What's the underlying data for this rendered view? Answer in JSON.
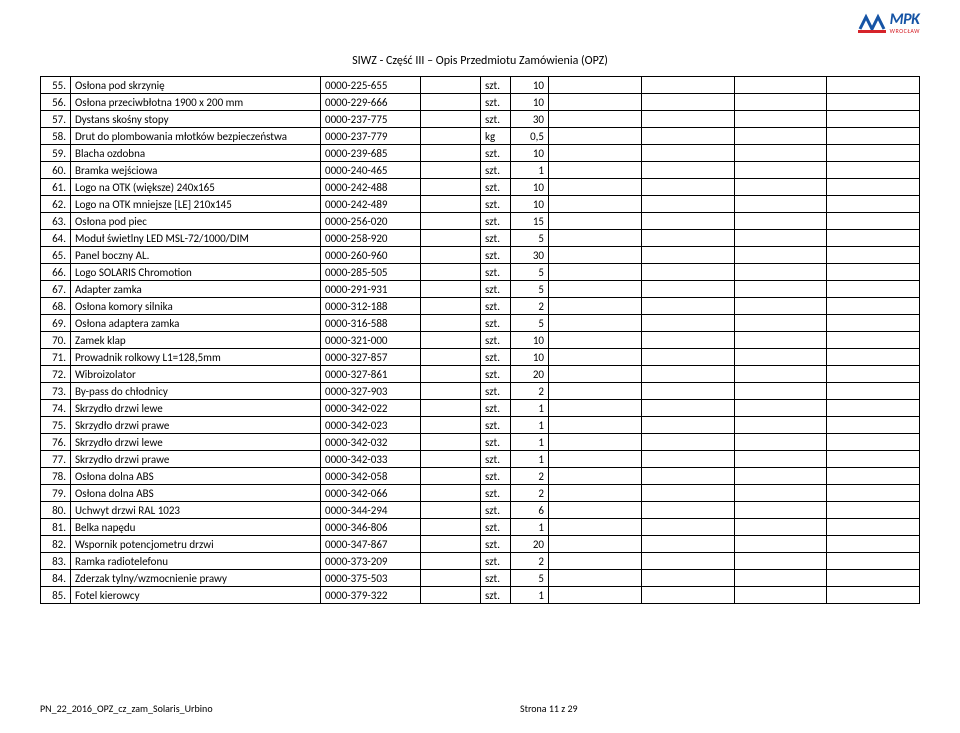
{
  "header": {
    "title": "SIWZ - Część III – Opis Przedmiotu Zamówienia (OPZ)",
    "logo_main": "MPK",
    "logo_sub": "WROCŁAW",
    "logo_colors": {
      "blue": "#1654a5",
      "red": "#d6232a"
    }
  },
  "footer": {
    "left": "PN_22_2016_OPZ_cz_zam_Solaris_Urbino",
    "center": "Strona 11 z 29"
  },
  "rows": [
    {
      "n": "55.",
      "name": "Osłona pod skrzynię",
      "code": "0000-225-655",
      "unit": "szt.",
      "qty": "10"
    },
    {
      "n": "56.",
      "name": "Osłona przeciwbłotna 1900 x 200 mm",
      "code": "0000-229-666",
      "unit": "szt.",
      "qty": "10"
    },
    {
      "n": "57.",
      "name": "Dystans skośny stopy",
      "code": "0000-237-775",
      "unit": "szt.",
      "qty": "30"
    },
    {
      "n": "58.",
      "name": "Drut do plombowania młotków bezpieczeństwa",
      "code": "0000-237-779",
      "unit": "kg",
      "qty": "0,5"
    },
    {
      "n": "59.",
      "name": "Blacha ozdobna",
      "code": "0000-239-685",
      "unit": "szt.",
      "qty": "10"
    },
    {
      "n": "60.",
      "name": "Bramka wejściowa",
      "code": "0000-240-465",
      "unit": "szt.",
      "qty": "1"
    },
    {
      "n": "61.",
      "name": "Logo na OTK (większe) 240x165",
      "code": "0000-242-488",
      "unit": "szt.",
      "qty": "10"
    },
    {
      "n": "62.",
      "name": "Logo na OTK mniejsze [LE] 210x145",
      "code": "0000-242-489",
      "unit": "szt.",
      "qty": "10"
    },
    {
      "n": "63.",
      "name": "Osłona pod piec",
      "code": "0000-256-020",
      "unit": "szt.",
      "qty": "15"
    },
    {
      "n": "64.",
      "name": "Moduł świetlny LED MSL-72/1000/DIM",
      "code": "0000-258-920",
      "unit": "szt.",
      "qty": "5"
    },
    {
      "n": "65.",
      "name": "Panel boczny AL.",
      "code": "0000-260-960",
      "unit": "szt.",
      "qty": "30"
    },
    {
      "n": "66.",
      "name": "Logo SOLARIS Chromotion",
      "code": "0000-285-505",
      "unit": "szt.",
      "qty": "5"
    },
    {
      "n": "67.",
      "name": "Adapter zamka",
      "code": "0000-291-931",
      "unit": "szt.",
      "qty": "5"
    },
    {
      "n": "68.",
      "name": "Osłona komory silnika",
      "code": "0000-312-188",
      "unit": "szt.",
      "qty": "2"
    },
    {
      "n": "69.",
      "name": "Osłona adaptera zamka",
      "code": "0000-316-588",
      "unit": "szt.",
      "qty": "5"
    },
    {
      "n": "70.",
      "name": "Zamek klap",
      "code": "0000-321-000",
      "unit": "szt.",
      "qty": "10"
    },
    {
      "n": "71.",
      "name": "Prowadnik rolkowy L1=128,5mm",
      "code": "0000-327-857",
      "unit": "szt.",
      "qty": "10"
    },
    {
      "n": "72.",
      "name": "Wibroizolator",
      "code": "0000-327-861",
      "unit": "szt.",
      "qty": "20"
    },
    {
      "n": "73.",
      "name": "By-pass do chłodnicy",
      "code": "0000-327-903",
      "unit": "szt.",
      "qty": "2"
    },
    {
      "n": "74.",
      "name": "Skrzydło drzwi lewe",
      "code": "0000-342-022",
      "unit": "szt.",
      "qty": "1"
    },
    {
      "n": "75.",
      "name": "Skrzydło drzwi prawe",
      "code": "0000-342-023",
      "unit": "szt.",
      "qty": "1"
    },
    {
      "n": "76.",
      "name": "Skrzydło drzwi lewe",
      "code": "0000-342-032",
      "unit": "szt.",
      "qty": "1"
    },
    {
      "n": "77.",
      "name": "Skrzydło drzwi prawe",
      "code": "0000-342-033",
      "unit": "szt.",
      "qty": "1"
    },
    {
      "n": "78.",
      "name": "Osłona dolna ABS",
      "code": "0000-342-058",
      "unit": "szt.",
      "qty": "2"
    },
    {
      "n": "79.",
      "name": "Osłona dolna ABS",
      "code": "0000-342-066",
      "unit": "szt.",
      "qty": "2"
    },
    {
      "n": "80.",
      "name": "Uchwyt drzwi RAL 1023",
      "code": "0000-344-294",
      "unit": "szt.",
      "qty": "6"
    },
    {
      "n": "81.",
      "name": "Belka napędu",
      "code": "0000-346-806",
      "unit": "szt.",
      "qty": "1"
    },
    {
      "n": "82.",
      "name": "Wspornik potencjometru drzwi",
      "code": "0000-347-867",
      "unit": "szt.",
      "qty": "20"
    },
    {
      "n": "83.",
      "name": "Ramka radiotelefonu",
      "code": "0000-373-209",
      "unit": "szt.",
      "qty": "2"
    },
    {
      "n": "84.",
      "name": "Zderzak tylny/wzmocnienie prawy",
      "code": "0000-375-503",
      "unit": "szt.",
      "qty": "5"
    },
    {
      "n": "85.",
      "name": "Fotel kierowcy",
      "code": "0000-379-322",
      "unit": "szt.",
      "qty": "1"
    }
  ]
}
